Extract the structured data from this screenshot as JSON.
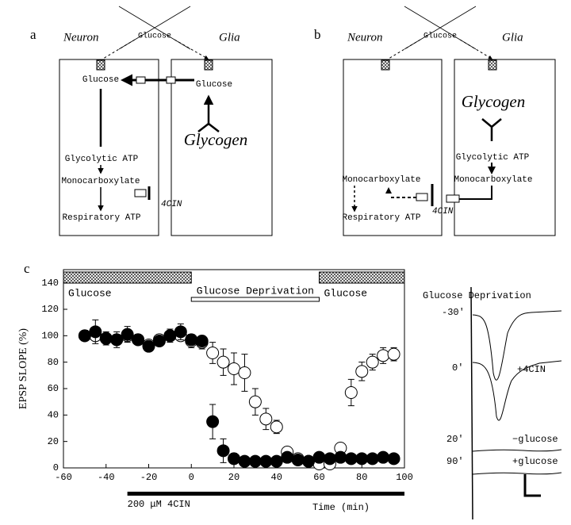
{
  "panel_a": {
    "label": "a",
    "neuron": "Neuron",
    "glia": "Glia",
    "glucose_top": "Glucose",
    "neuron_glucose": "Glucose",
    "glia_glucose": "Glucose",
    "glycogen": "Glycogen",
    "glycolytic_atp": "Glycolytic ATP",
    "monocarboxylate": "Monocarboxylate",
    "respiratory_atp": "Respiratory ATP",
    "inhibitor": "4CIN"
  },
  "panel_b": {
    "label": "b",
    "neuron": "Neuron",
    "glia": "Glia",
    "glucose_top": "Glucose",
    "glycogen": "Glycogen",
    "glycolytic_atp": "Glycolytic ATP",
    "glia_monocarboxylate": "Monocarboxylate",
    "neuron_monocarboxylate": "Monocarboxylate",
    "respiratory_atp": "Respiratory ATP",
    "inhibitor": "4CIN"
  },
  "chart_data": {
    "type": "scatter",
    "panel_label": "c",
    "xlabel": "Time (min)",
    "ylabel": "EPSP SLOPE (%)",
    "xlim": [
      -60,
      100
    ],
    "xticks": [
      -60,
      -40,
      -20,
      0,
      20,
      40,
      60,
      80,
      100
    ],
    "ylim": [
      0,
      150
    ],
    "yticks": [
      0,
      20,
      40,
      60,
      80,
      100,
      120,
      140
    ],
    "x": [
      -50,
      -45,
      -40,
      -35,
      -30,
      -25,
      -20,
      -15,
      -10,
      -5,
      0,
      5,
      10,
      15,
      20,
      25,
      30,
      35,
      40,
      45,
      50,
      55,
      60,
      65,
      70,
      75,
      80,
      85,
      90,
      95
    ],
    "series": [
      {
        "fill": "#ffffff",
        "values": [
          100,
          100,
          98,
          97,
          100,
          97,
          93,
          97,
          100,
          100,
          96,
          95,
          87,
          80,
          75,
          72,
          50,
          37,
          31,
          12,
          7,
          5,
          3,
          3,
          15,
          57,
          73,
          80,
          85,
          86
        ],
        "errors": [
          4,
          4,
          4,
          4,
          4,
          4,
          3,
          4,
          4,
          4,
          5,
          5,
          8,
          10,
          12,
          14,
          10,
          8,
          5,
          4,
          3,
          3,
          3,
          3,
          4,
          10,
          7,
          6,
          6,
          5
        ]
      },
      {
        "fill": "#000000",
        "values": [
          100,
          103,
          98,
          97,
          101,
          97,
          92,
          96,
          100,
          103,
          97,
          96,
          35,
          13,
          7,
          5,
          5,
          5,
          5,
          8,
          6,
          5,
          8,
          7,
          8,
          7,
          7,
          7,
          8,
          7
        ],
        "errors": [
          4,
          9,
          5,
          6,
          6,
          4,
          3,
          4,
          5,
          6,
          4,
          4,
          13,
          9,
          4,
          3,
          3,
          3,
          3,
          3,
          3,
          3,
          3,
          3,
          3,
          3,
          3,
          3,
          3,
          3
        ]
      }
    ],
    "bands": [
      {
        "label": "Glucose",
        "start": -60,
        "end": 0,
        "style": "hatched"
      },
      {
        "label": "Glucose Deprivation",
        "start": 0,
        "end": 60,
        "style": "open"
      },
      {
        "label": "Glucose",
        "start": 60,
        "end": 100,
        "style": "hatched"
      }
    ],
    "drug_bar": {
      "label": "200 μM 4CIN",
      "start": -30,
      "end": 100
    }
  },
  "panel_traces": {
    "title": "Glucose Deprivation",
    "t1": "-30'",
    "t2": "0'",
    "drug": "+4CIN",
    "t3": "20'",
    "minus_glucose": "−glucose",
    "t4": "90'",
    "plus_glucose": "+glucose"
  }
}
